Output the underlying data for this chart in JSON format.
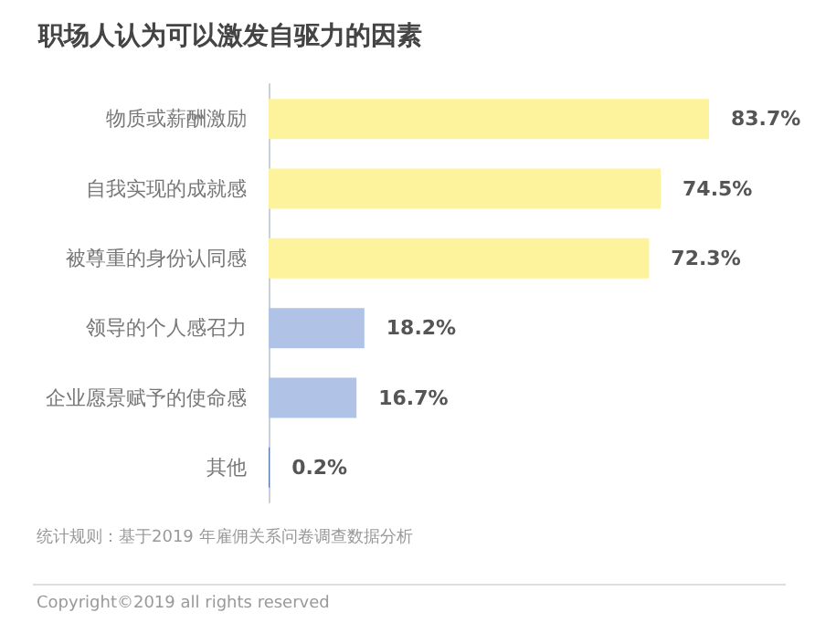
{
  "chart_data": {
    "type": "bar",
    "orientation": "horizontal",
    "title": "职场人认为可以激发自驱力的因素",
    "categories": [
      "物质或薪酬激励",
      "自我实现的成就感",
      "被尊重的身份认同感",
      "领导的个人感召力",
      "企业愿景赋予的使命感",
      "其他"
    ],
    "values": [
      83.7,
      74.5,
      72.3,
      18.2,
      16.7,
      0.2
    ],
    "colors": [
      "#fcf39c",
      "#fcf39c",
      "#fcf39c",
      "#b0c2e5",
      "#b0c2e5",
      "#5b79b3"
    ],
    "value_labels": [
      "83.7%",
      "74.5%",
      "72.3%",
      "18.2%",
      "16.7%",
      "0.2%"
    ],
    "annotations": [
      "统计规则：基于2019 年雇佣关系问卷调查数据分析",
      "Copyright©2019 all rights reserved"
    ]
  }
}
